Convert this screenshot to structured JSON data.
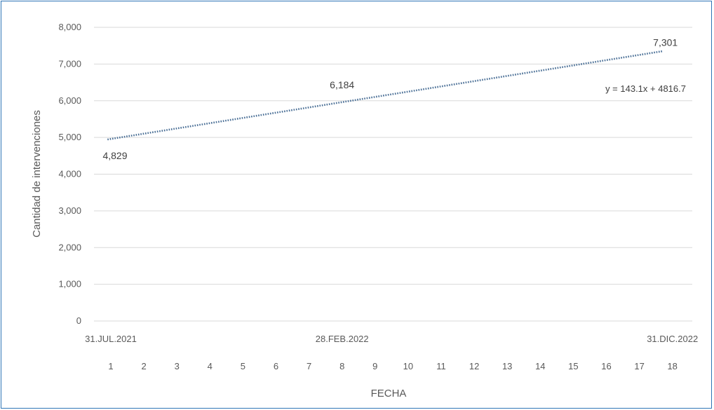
{
  "chart_data": {
    "type": "line",
    "xlabel": "FECHA",
    "ylabel": "Cantidad de intervenciones",
    "ylim": [
      0,
      8000
    ],
    "yticks": [
      "0",
      "1,000",
      "2,000",
      "3,000",
      "4,000",
      "5,000",
      "6,000",
      "7,000",
      "8,000"
    ],
    "x": [
      1,
      2,
      3,
      4,
      5,
      6,
      7,
      8,
      9,
      10,
      11,
      12,
      13,
      14,
      15,
      16,
      17,
      18
    ],
    "x_tick_labels": [
      "1",
      "2",
      "3",
      "4",
      "5",
      "6",
      "7",
      "8",
      "9",
      "10",
      "11",
      "12",
      "13",
      "14",
      "15",
      "16",
      "17",
      "18"
    ],
    "date_labels": [
      {
        "x": 1,
        "label": "31.JUL.2021"
      },
      {
        "x": 8,
        "label": "28.FEB.2022"
      },
      {
        "x": 18,
        "label": "31.DIC.2022"
      }
    ],
    "trendline": {
      "style": "dotted",
      "color": "#4a6f96",
      "slope": 143.1,
      "intercept": 4816.7,
      "equation": "y = 143.1x + 4816.7"
    },
    "data_labels": [
      {
        "x": 1,
        "y": 4829,
        "label": "4,829"
      },
      {
        "x": 8,
        "y": 6184,
        "label": "6,184"
      },
      {
        "x": 18,
        "y": 7301,
        "label": "7,301"
      }
    ],
    "grid": true,
    "gridColor": "#d9d9d9",
    "borderColor": "#2e75b6"
  }
}
